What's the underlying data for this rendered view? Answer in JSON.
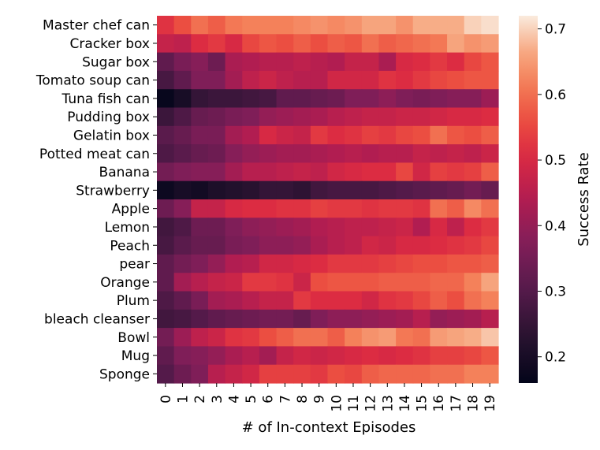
{
  "chart_data": {
    "type": "heatmap",
    "title": "",
    "xlabel": "# of In-context Episodes",
    "ylabel": "",
    "colorbar_label": "Success Rate",
    "colorbar_ticks": [
      0.2,
      0.3,
      0.4,
      0.5,
      0.6,
      0.7
    ],
    "colorbar_range": [
      0.16,
      0.72
    ],
    "colormap": "rocket",
    "x": [
      "0",
      "1",
      "2",
      "3",
      "4",
      "5",
      "6",
      "7",
      "8",
      "9",
      "10",
      "11",
      "12",
      "13",
      "14",
      "15",
      "16",
      "17",
      "18",
      "19"
    ],
    "y": [
      "Master chef can",
      "Cracker box",
      "Sugar box",
      "Tomato soup can",
      "Tuna fish can",
      "Pudding box",
      "Gelatin box",
      "Potted meat can",
      "Banana",
      "Strawberry",
      "Apple",
      "Lemon",
      "Peach",
      "pear",
      "Orange",
      "Plum",
      "bleach cleanser",
      "Bowl",
      "Mug",
      "Sponge"
    ],
    "values": [
      [
        0.52,
        0.56,
        0.6,
        0.58,
        0.61,
        0.62,
        0.62,
        0.62,
        0.63,
        0.64,
        0.63,
        0.64,
        0.66,
        0.66,
        0.64,
        0.67,
        0.67,
        0.67,
        0.7,
        0.71
      ],
      [
        0.47,
        0.46,
        0.51,
        0.53,
        0.5,
        0.55,
        0.57,
        0.56,
        0.58,
        0.56,
        0.58,
        0.57,
        0.6,
        0.58,
        0.59,
        0.6,
        0.61,
        0.66,
        0.64,
        0.65
      ],
      [
        0.32,
        0.36,
        0.38,
        0.34,
        0.43,
        0.44,
        0.45,
        0.45,
        0.46,
        0.45,
        0.44,
        0.47,
        0.47,
        0.43,
        0.5,
        0.51,
        0.53,
        0.51,
        0.55,
        0.57
      ],
      [
        0.28,
        0.32,
        0.37,
        0.37,
        0.42,
        0.46,
        0.48,
        0.46,
        0.45,
        0.45,
        0.49,
        0.49,
        0.49,
        0.52,
        0.51,
        0.53,
        0.55,
        0.56,
        0.57,
        0.57
      ],
      [
        0.17,
        0.2,
        0.25,
        0.26,
        0.26,
        0.27,
        0.28,
        0.32,
        0.32,
        0.33,
        0.34,
        0.37,
        0.37,
        0.39,
        0.37,
        0.36,
        0.37,
        0.38,
        0.38,
        0.41
      ],
      [
        0.26,
        0.29,
        0.33,
        0.34,
        0.36,
        0.37,
        0.4,
        0.41,
        0.42,
        0.43,
        0.45,
        0.46,
        0.47,
        0.47,
        0.48,
        0.48,
        0.49,
        0.5,
        0.5,
        0.51
      ],
      [
        0.31,
        0.33,
        0.36,
        0.36,
        0.42,
        0.44,
        0.5,
        0.48,
        0.47,
        0.53,
        0.51,
        0.52,
        0.54,
        0.53,
        0.55,
        0.56,
        0.6,
        0.57,
        0.56,
        0.58
      ],
      [
        0.29,
        0.31,
        0.33,
        0.34,
        0.38,
        0.4,
        0.41,
        0.42,
        0.42,
        0.43,
        0.44,
        0.45,
        0.44,
        0.45,
        0.45,
        0.47,
        0.46,
        0.47,
        0.46,
        0.48
      ],
      [
        0.35,
        0.37,
        0.38,
        0.38,
        0.42,
        0.45,
        0.45,
        0.46,
        0.47,
        0.46,
        0.49,
        0.5,
        0.51,
        0.51,
        0.55,
        0.49,
        0.54,
        0.53,
        0.54,
        0.58
      ],
      [
        0.18,
        0.2,
        0.19,
        0.21,
        0.22,
        0.23,
        0.25,
        0.25,
        0.24,
        0.27,
        0.28,
        0.28,
        0.28,
        0.29,
        0.3,
        0.31,
        0.32,
        0.33,
        0.35,
        0.33
      ],
      [
        0.34,
        0.38,
        0.47,
        0.47,
        0.5,
        0.51,
        0.51,
        0.52,
        0.52,
        0.54,
        0.53,
        0.53,
        0.52,
        0.53,
        0.53,
        0.52,
        0.6,
        0.58,
        0.63,
        0.6
      ],
      [
        0.27,
        0.29,
        0.34,
        0.34,
        0.37,
        0.39,
        0.4,
        0.41,
        0.42,
        0.44,
        0.45,
        0.46,
        0.46,
        0.47,
        0.48,
        0.44,
        0.5,
        0.46,
        0.51,
        0.53
      ],
      [
        0.28,
        0.31,
        0.33,
        0.33,
        0.36,
        0.37,
        0.39,
        0.39,
        0.4,
        0.43,
        0.45,
        0.46,
        0.49,
        0.48,
        0.5,
        0.5,
        0.51,
        0.52,
        0.53,
        0.55
      ],
      [
        0.32,
        0.35,
        0.37,
        0.4,
        0.44,
        0.45,
        0.49,
        0.49,
        0.5,
        0.51,
        0.53,
        0.53,
        0.53,
        0.54,
        0.55,
        0.56,
        0.56,
        0.57,
        0.57,
        0.58
      ],
      [
        0.32,
        0.42,
        0.45,
        0.47,
        0.48,
        0.53,
        0.53,
        0.52,
        0.48,
        0.56,
        0.57,
        0.57,
        0.57,
        0.58,
        0.58,
        0.58,
        0.59,
        0.59,
        0.62,
        0.66
      ],
      [
        0.29,
        0.32,
        0.36,
        0.42,
        0.43,
        0.45,
        0.47,
        0.47,
        0.53,
        0.51,
        0.51,
        0.51,
        0.49,
        0.52,
        0.53,
        0.55,
        0.58,
        0.56,
        0.6,
        0.62
      ],
      [
        0.27,
        0.28,
        0.3,
        0.32,
        0.33,
        0.34,
        0.35,
        0.35,
        0.33,
        0.37,
        0.39,
        0.39,
        0.4,
        0.41,
        0.42,
        0.45,
        0.4,
        0.41,
        0.42,
        0.45
      ],
      [
        0.35,
        0.41,
        0.46,
        0.48,
        0.52,
        0.53,
        0.56,
        0.58,
        0.6,
        0.6,
        0.58,
        0.62,
        0.64,
        0.65,
        0.61,
        0.6,
        0.65,
        0.66,
        0.67,
        0.69
      ],
      [
        0.32,
        0.37,
        0.38,
        0.4,
        0.43,
        0.45,
        0.42,
        0.47,
        0.49,
        0.48,
        0.49,
        0.5,
        0.51,
        0.5,
        0.51,
        0.52,
        0.54,
        0.54,
        0.55,
        0.57
      ],
      [
        0.3,
        0.34,
        0.37,
        0.45,
        0.47,
        0.49,
        0.54,
        0.54,
        0.54,
        0.53,
        0.56,
        0.55,
        0.58,
        0.59,
        0.59,
        0.59,
        0.6,
        0.6,
        0.62,
        0.62
      ]
    ]
  }
}
